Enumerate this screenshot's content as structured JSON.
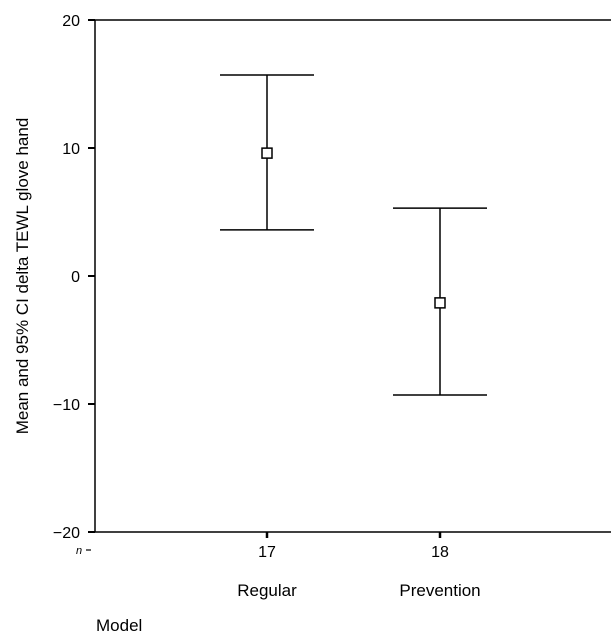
{
  "chart_data": {
    "type": "errorbar",
    "ylabel": "Mean and 95% CI delta TEWL glove hand",
    "xlabel": "Model",
    "ylim": [
      -20,
      20
    ],
    "yticks": [
      "20",
      "10",
      "0",
      "−10",
      "−20"
    ],
    "ytick_values": [
      20,
      10,
      0,
      -10,
      -20
    ],
    "n_label": "n",
    "categories": [
      "Regular",
      "Prevention"
    ],
    "n_values": [
      "17",
      "18"
    ],
    "points": [
      {
        "category": "Regular",
        "n": 17,
        "mean": 9.6,
        "ci_lower": 3.6,
        "ci_upper": 15.7
      },
      {
        "category": "Prevention",
        "n": 18,
        "mean": -2.1,
        "ci_lower": -9.3,
        "ci_upper": 5.3
      }
    ],
    "grid": false
  }
}
